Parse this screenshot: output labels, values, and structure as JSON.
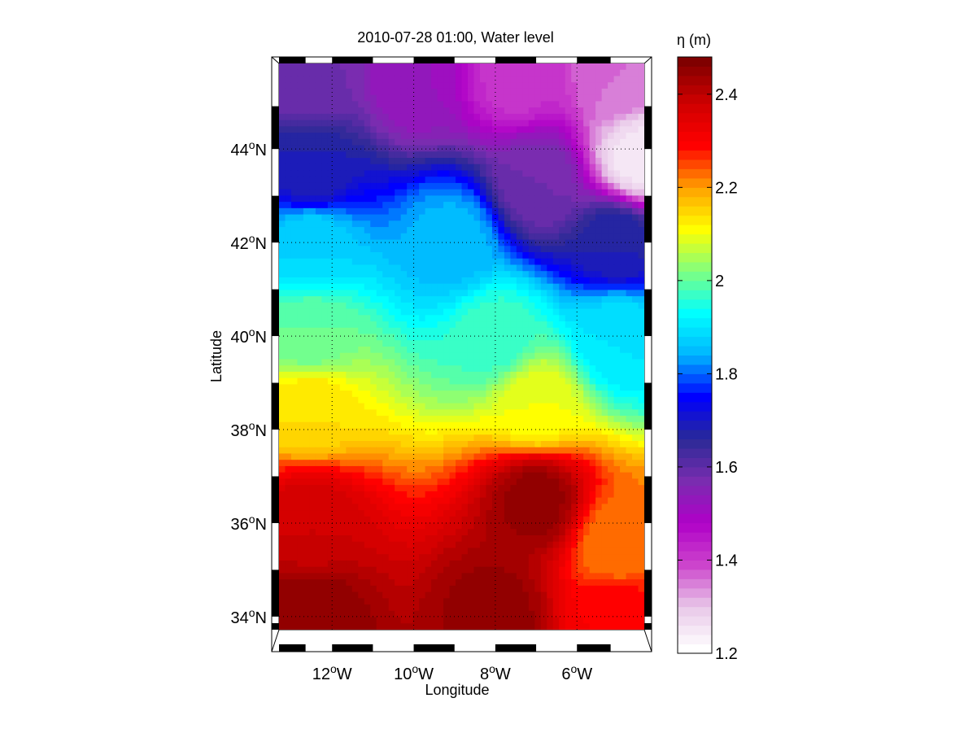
{
  "chart_data": {
    "type": "heatmap",
    "title": "2010-07-28 01:00, Water level",
    "xlabel": "Longitude",
    "ylabel": "Latitude",
    "x_ticks": [
      {
        "value": -12,
        "num": "12",
        "deg": "o",
        "hemi": "W"
      },
      {
        "value": -10,
        "num": "10",
        "deg": "o",
        "hemi": "W"
      },
      {
        "value": -8,
        "num": "8",
        "deg": "o",
        "hemi": "W"
      },
      {
        "value": -6,
        "num": "6",
        "deg": "o",
        "hemi": "W"
      }
    ],
    "y_ticks": [
      {
        "value": 34,
        "num": "34",
        "deg": "o",
        "hemi": "N"
      },
      {
        "value": 36,
        "num": "36",
        "deg": "o",
        "hemi": "N"
      },
      {
        "value": 38,
        "num": "38",
        "deg": "o",
        "hemi": "N"
      },
      {
        "value": 40,
        "num": "40",
        "deg": "o",
        "hemi": "N"
      },
      {
        "value": 42,
        "num": "42",
        "deg": "o",
        "hemi": "N"
      },
      {
        "value": 44,
        "num": "44",
        "deg": "o",
        "hemi": "N"
      }
    ],
    "xlim": [
      -13.3,
      -4.35
    ],
    "ylim": [
      33.72,
      45.83
    ],
    "grid": true,
    "grid_style": "dotted",
    "colorbar": {
      "label": "η (m)",
      "range": [
        1.2,
        2.48
      ],
      "ticks": [
        {
          "value": 1.2,
          "label": "1.2"
        },
        {
          "value": 1.4,
          "label": "1.4"
        },
        {
          "value": 1.6,
          "label": "1.6"
        },
        {
          "value": 1.8,
          "label": "1.8"
        },
        {
          "value": 2.0,
          "label": "2"
        },
        {
          "value": 2.2,
          "label": "2.2"
        },
        {
          "value": 2.4,
          "label": "2.4"
        }
      ],
      "levels": 64,
      "colormap": [
        "#ffffff",
        "#e8c8e8",
        "#cc44cc",
        "#b000c8",
        "#7a2cb0",
        "#2a2a96",
        "#0000ff",
        "#00b4ff",
        "#00ffff",
        "#80ff80",
        "#ffff00",
        "#ffa000",
        "#ff0000",
        "#d00000",
        "#800000"
      ]
    },
    "field_description_points": [
      {
        "lon": -12.5,
        "lat": 45.5,
        "eta": 1.58
      },
      {
        "lon": -10,
        "lat": 45.5,
        "eta": 1.52
      },
      {
        "lon": -7.5,
        "lat": 45.5,
        "eta": 1.41
      },
      {
        "lon": -5,
        "lat": 45.5,
        "eta": 1.36
      },
      {
        "lon": -4.5,
        "lat": 43.8,
        "eta": 1.25
      },
      {
        "lon": -12.5,
        "lat": 43.5,
        "eta": 1.68
      },
      {
        "lon": -7,
        "lat": 43.3,
        "eta": 1.58
      },
      {
        "lon": -12.5,
        "lat": 42,
        "eta": 1.88
      },
      {
        "lon": -9,
        "lat": 42,
        "eta": 1.85
      },
      {
        "lon": -5,
        "lat": 42,
        "eta": 1.68
      },
      {
        "lon": -12.5,
        "lat": 40,
        "eta": 2.0
      },
      {
        "lon": -8,
        "lat": 40,
        "eta": 1.97
      },
      {
        "lon": -5,
        "lat": 40,
        "eta": 1.9
      },
      {
        "lon": -12.5,
        "lat": 38.5,
        "eta": 2.14
      },
      {
        "lon": -7,
        "lat": 38.5,
        "eta": 2.1
      },
      {
        "lon": -12.5,
        "lat": 36,
        "eta": 2.38
      },
      {
        "lon": -7,
        "lat": 36.5,
        "eta": 2.45
      },
      {
        "lon": -5,
        "lat": 35.5,
        "eta": 2.22
      },
      {
        "lon": -12.5,
        "lat": 34,
        "eta": 2.46
      },
      {
        "lon": -8,
        "lat": 34,
        "eta": 2.45
      },
      {
        "lon": -5,
        "lat": 34,
        "eta": 2.3
      }
    ]
  }
}
